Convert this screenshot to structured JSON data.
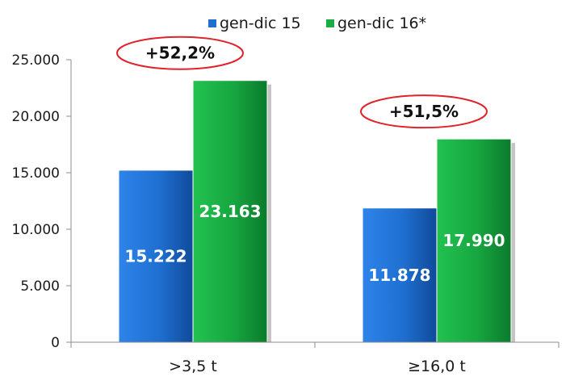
{
  "chart_data": {
    "type": "bar",
    "categories": [
      ">3,5 t",
      "≥16,0 t"
    ],
    "series": [
      {
        "name": "gen-dic 15",
        "values": [
          15222,
          11878
        ],
        "labels": [
          "15.222",
          "11.878"
        ],
        "color": "#1f6fd0"
      },
      {
        "name": "gen-dic 16*",
        "values": [
          23163,
          17990
        ],
        "labels": [
          "23.163",
          "17.990"
        ],
        "color": "#19ad44"
      }
    ],
    "yticks": [
      "0",
      "5.000",
      "10.000",
      "15.000",
      "20.000",
      "25.000"
    ],
    "ylim": [
      0,
      25000
    ],
    "grid": false,
    "legend": "top",
    "annotations": [
      "+52,2%",
      "+51,5%"
    ],
    "annotation_color": "#e0222a"
  }
}
